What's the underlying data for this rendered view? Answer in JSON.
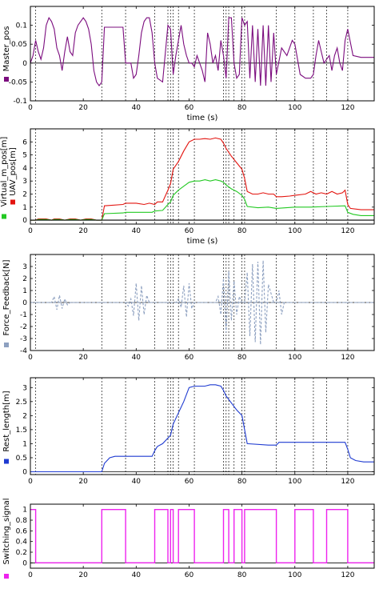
{
  "chart_data": [
    {
      "type": "line",
      "xlabel": "time (s)",
      "ylabel": "Master_pos",
      "xlim": [
        0,
        130
      ],
      "ylim": [
        -0.1,
        0.15
      ],
      "xticks": [
        0,
        20,
        40,
        60,
        80,
        100,
        120
      ],
      "yticks": [
        -0.1,
        -0.05,
        0,
        0.05,
        0.1
      ],
      "ytick_labels": [
        "-0.1",
        "-0.05",
        "0",
        "0.05",
        "0.1"
      ],
      "legend": [
        {
          "name": "",
          "color": "#7b0c7e"
        }
      ],
      "series": [
        {
          "name": "",
          "color": "#7b0c7e",
          "style": "solid",
          "x": [
            0,
            1,
            2,
            3,
            4,
            5,
            6,
            7,
            8,
            9,
            10,
            11,
            12,
            13,
            14,
            15,
            16,
            17,
            18,
            19,
            20,
            21,
            22,
            23,
            24,
            25,
            26,
            27,
            28,
            29,
            31,
            33,
            35,
            36,
            37,
            38,
            39,
            40,
            41,
            42,
            43,
            44,
            45,
            46,
            47,
            48,
            50,
            52,
            53,
            54,
            55,
            56,
            57,
            58,
            59,
            60,
            61,
            62,
            63,
            64,
            65,
            66,
            67,
            68,
            69,
            70,
            71,
            72,
            73,
            74,
            75,
            76,
            77,
            78,
            79,
            80,
            81,
            82,
            83,
            84,
            85,
            86,
            87,
            88,
            89,
            90,
            91,
            92,
            93,
            95,
            97,
            99,
            100,
            102,
            104,
            106,
            107,
            108,
            109,
            110,
            111,
            112,
            113,
            114,
            115,
            116,
            117,
            118,
            119,
            120,
            122,
            125,
            128,
            130
          ],
          "y": [
            0,
            0.02,
            0.06,
            0.03,
            0.01,
            0.04,
            0.1,
            0.12,
            0.11,
            0.09,
            0.04,
            0.02,
            -0.02,
            0.03,
            0.07,
            0.03,
            0.02,
            0.08,
            0.1,
            0.11,
            0.12,
            0.11,
            0.09,
            0.05,
            -0.02,
            -0.05,
            -0.06,
            -0.05,
            0.095,
            0.095,
            0.095,
            0.095,
            0.095,
            0.0,
            0.0,
            0.0,
            -0.04,
            -0.03,
            0.02,
            0.08,
            0.11,
            0.12,
            0.12,
            0.08,
            0.0,
            -0.04,
            -0.05,
            0.1,
            0.09,
            -0.03,
            0.02,
            0.06,
            0.1,
            0.05,
            0.02,
            0.0,
            0.0,
            -0.01,
            0.02,
            0.0,
            -0.02,
            -0.05,
            0.08,
            0.05,
            0.0,
            0.02,
            -0.02,
            0.06,
            0.02,
            -0.04,
            0.12,
            0.12,
            0.0,
            -0.04,
            -0.03,
            0.12,
            0.1,
            0.11,
            -0.04,
            0.1,
            -0.05,
            0.09,
            -0.06,
            0.1,
            -0.06,
            0.1,
            -0.05,
            0.08,
            -0.03,
            0.04,
            0.02,
            0.06,
            0.05,
            -0.03,
            -0.04,
            -0.04,
            -0.03,
            0.02,
            0.06,
            0.03,
            0.0,
            0.01,
            0.02,
            -0.02,
            0.02,
            0.04,
            0.0,
            -0.02,
            0.06,
            0.09,
            0.02,
            0.015,
            0.015,
            0.015
          ]
        }
      ],
      "vlines": [
        2,
        27,
        36,
        47,
        52,
        53,
        54,
        56,
        62,
        73,
        74,
        75,
        77,
        80,
        81,
        93,
        100,
        107,
        112,
        120
      ]
    },
    {
      "type": "line",
      "xlabel": "time (s)",
      "ylabel": "Virtual_m_pos[m]",
      "ylabel2": "UAV_pos[m]",
      "xlim": [
        0,
        130
      ],
      "ylim": [
        -0.3,
        7
      ],
      "xticks": [
        0,
        20,
        40,
        60,
        80,
        100,
        120
      ],
      "yticks": [
        0,
        1,
        2,
        3,
        4,
        5,
        6
      ],
      "ytick_labels": [
        "0",
        "1",
        "2",
        "3",
        "4",
        "5",
        "6"
      ],
      "legend": [
        {
          "name": "",
          "color": "#22c922"
        },
        {
          "name": "",
          "color": "#e3140f"
        }
      ],
      "series": [
        {
          "name": "",
          "color": "#e3140f",
          "style": "solid",
          "x": [
            0,
            2,
            3,
            6,
            8,
            9,
            11,
            13,
            15,
            17,
            19,
            21,
            23,
            25,
            27,
            28,
            35,
            36,
            37,
            40,
            43,
            45,
            47,
            48,
            50,
            52,
            53,
            54,
            56,
            58,
            60,
            62,
            64,
            66,
            68,
            70,
            72,
            73,
            74,
            76,
            78,
            80,
            81,
            82,
            84,
            86,
            88,
            90,
            92,
            93,
            95,
            98,
            100,
            104,
            106,
            108,
            110,
            112,
            114,
            116,
            118,
            119,
            120,
            121,
            125,
            130
          ],
          "y": [
            0,
            0,
            0.1,
            0.1,
            0,
            0.1,
            0.1,
            0,
            0.1,
            0.1,
            0,
            0.1,
            0.1,
            0,
            0,
            1.1,
            1.2,
            1.3,
            1.3,
            1.3,
            1.2,
            1.3,
            1.2,
            1.4,
            1.4,
            2.3,
            2.8,
            3.9,
            4.5,
            5.3,
            6.0,
            6.2,
            6.2,
            6.25,
            6.2,
            6.3,
            6.2,
            5.9,
            5.5,
            4.9,
            4.4,
            3.9,
            3.2,
            2.2,
            2.0,
            2.0,
            2.1,
            2.0,
            2.0,
            1.8,
            1.8,
            1.85,
            1.9,
            2.0,
            2.2,
            2.0,
            2.1,
            2.0,
            2.2,
            2.0,
            2.1,
            2.3,
            1.2,
            0.9,
            0.8,
            0.8
          ]
        },
        {
          "name": "",
          "color": "#22c922",
          "style": "solid",
          "x": [
            0,
            2,
            3,
            6,
            8,
            9,
            11,
            13,
            15,
            17,
            19,
            21,
            23,
            25,
            27,
            28,
            35,
            36,
            40,
            46,
            47,
            50,
            52,
            53,
            54,
            56,
            58,
            60,
            62,
            64,
            66,
            68,
            70,
            72,
            73,
            74,
            76,
            78,
            80,
            81,
            82,
            86,
            90,
            93,
            100,
            106,
            112,
            119,
            120,
            122,
            125,
            130
          ],
          "y": [
            0,
            0,
            0.05,
            0.05,
            0,
            0.05,
            0.05,
            0,
            0.05,
            0.05,
            0,
            0.05,
            0.05,
            0,
            0,
            0.5,
            0.55,
            0.6,
            0.6,
            0.6,
            0.7,
            0.75,
            1.2,
            1.4,
            1.9,
            2.3,
            2.6,
            2.9,
            3.0,
            3.0,
            3.1,
            3.0,
            3.1,
            3.0,
            2.9,
            2.7,
            2.4,
            2.2,
            1.9,
            1.6,
            1.05,
            0.95,
            1.0,
            0.9,
            1.0,
            1.0,
            1.05,
            1.1,
            0.6,
            0.45,
            0.35,
            0.35
          ]
        },
        {
          "name": "",
          "color": "#000000",
          "style": "solid",
          "x": [
            0,
            130
          ],
          "y": [
            0,
            0
          ]
        }
      ],
      "vlines": [
        2,
        27,
        36,
        47,
        52,
        53,
        54,
        56,
        62,
        73,
        74,
        75,
        77,
        80,
        81,
        93,
        100,
        107,
        112,
        120
      ]
    },
    {
      "type": "line",
      "xlabel": "",
      "ylabel": "Force_Feedback[N]",
      "xlim": [
        0,
        130
      ],
      "ylim": [
        -4,
        4
      ],
      "xticks": [
        0,
        20,
        40,
        60,
        80,
        100,
        120
      ],
      "yticks": [
        -4,
        -3,
        -2,
        -1,
        0,
        1,
        2,
        3
      ],
      "ytick_labels": [
        "-4",
        "-3",
        "-2",
        "-1",
        "0",
        "1",
        "2",
        "3"
      ],
      "legend": [
        {
          "name": "",
          "color": "#8da0c0"
        }
      ],
      "series": [
        {
          "name": "",
          "color": "#8da0c0",
          "style": "dashed",
          "x": [
            0,
            8,
            9,
            10,
            11,
            12,
            13,
            14,
            15,
            36,
            37,
            38,
            39,
            40,
            41,
            42,
            43,
            44,
            45,
            55,
            56,
            57,
            58,
            59,
            60,
            61,
            62,
            70,
            71,
            72,
            73,
            74,
            75,
            76,
            77,
            78,
            79,
            80,
            81,
            82,
            83,
            84,
            85,
            86,
            87,
            88,
            89,
            90,
            92,
            93,
            94,
            95,
            96,
            130
          ],
          "y": [
            0,
            0,
            0.5,
            -0.6,
            0.6,
            -0.5,
            0.3,
            -0.2,
            0,
            0,
            -0.3,
            0.3,
            -1.1,
            1.6,
            -1.5,
            1.4,
            -1.0,
            0.6,
            0,
            0,
            0.3,
            -0.4,
            1.4,
            -1.2,
            1.6,
            -0.5,
            0,
            0,
            0.5,
            -1.0,
            2.0,
            -2.5,
            2.6,
            -1.5,
            1.8,
            -1.0,
            0.5,
            0,
            0,
            2.5,
            -2.8,
            3.2,
            -3.3,
            3.4,
            -3.5,
            3.5,
            -2.5,
            1.5,
            0,
            0,
            1.0,
            -1.0,
            0,
            0
          ]
        }
      ],
      "vlines": [
        2,
        27,
        36,
        47,
        52,
        53,
        54,
        56,
        62,
        73,
        74,
        75,
        77,
        80,
        81,
        93,
        100,
        107,
        112,
        120
      ]
    },
    {
      "type": "line",
      "xlabel": "",
      "ylabel": "Rest_length[m]",
      "xlim": [
        0,
        130
      ],
      "ylim": [
        -0.1,
        3.35
      ],
      "xticks": [
        0,
        20,
        40,
        60,
        80,
        100,
        120
      ],
      "yticks": [
        0,
        0.5,
        1,
        1.5,
        2,
        2.5,
        3
      ],
      "ytick_labels": [
        "0",
        "0.5",
        "1",
        "1.5",
        "2",
        "2.5",
        "3"
      ],
      "legend": [
        {
          "name": "",
          "color": "#1f3bd1"
        }
      ],
      "series": [
        {
          "name": "",
          "color": "#1f3bd1",
          "style": "solid",
          "x": [
            0,
            27,
            28,
            30,
            32,
            35,
            36,
            46,
            47,
            48,
            50,
            52,
            53,
            54,
            56,
            58,
            60,
            62,
            64,
            66,
            68,
            70,
            72,
            73,
            74,
            76,
            78,
            80,
            81,
            82,
            90,
            93,
            94,
            100,
            110,
            119,
            120,
            121,
            123,
            126,
            130
          ],
          "y": [
            0,
            0,
            0.3,
            0.5,
            0.55,
            0.55,
            0.55,
            0.55,
            0.75,
            0.9,
            1.0,
            1.2,
            1.3,
            1.7,
            2.1,
            2.5,
            3.0,
            3.05,
            3.05,
            3.05,
            3.1,
            3.1,
            3.05,
            2.9,
            2.7,
            2.45,
            2.2,
            2.0,
            1.5,
            1.0,
            0.95,
            0.95,
            1.05,
            1.05,
            1.05,
            1.05,
            0.8,
            0.5,
            0.4,
            0.35,
            0.35
          ]
        }
      ],
      "vlines": [
        2,
        27,
        36,
        47,
        52,
        53,
        54,
        56,
        62,
        73,
        74,
        75,
        77,
        80,
        81,
        93,
        100,
        107,
        112,
        120
      ]
    },
    {
      "type": "line",
      "xlabel": "",
      "ylabel": "Switching_signal",
      "xlim": [
        0,
        130
      ],
      "ylim": [
        -0.1,
        1.1
      ],
      "xticks": [
        0,
        20,
        40,
        60,
        80,
        100,
        120
      ],
      "yticks": [
        0,
        0.2,
        0.4,
        0.6,
        0.8,
        1
      ],
      "ytick_labels": [
        "0",
        "0.2",
        "0.4",
        "0.6",
        "0.8",
        "1"
      ],
      "legend": [
        {
          "name": "",
          "color": "#ee22ee"
        }
      ],
      "series": [
        {
          "name": "",
          "color": "#ee22ee",
          "style": "solid",
          "x": [
            0,
            2,
            2,
            27,
            27,
            36,
            36,
            47,
            47,
            52,
            52,
            53,
            53,
            54,
            54,
            56,
            56,
            62,
            62,
            73,
            73,
            75,
            75,
            77,
            77,
            80,
            80,
            81,
            81,
            93,
            93,
            100,
            100,
            107,
            107,
            112,
            112,
            120,
            120,
            130
          ],
          "y": [
            1,
            1,
            0,
            0,
            1,
            1,
            0,
            0,
            1,
            1,
            0,
            0,
            1,
            1,
            0,
            0,
            1,
            1,
            0,
            0,
            1,
            1,
            0,
            0,
            1,
            1,
            0,
            0,
            1,
            1,
            0,
            0,
            1,
            1,
            0,
            0,
            1,
            1,
            0,
            0
          ]
        }
      ],
      "vlines": []
    }
  ]
}
